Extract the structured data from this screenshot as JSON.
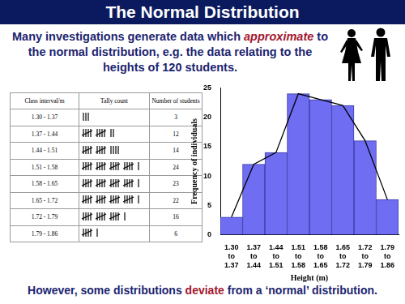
{
  "header": {
    "title": "The Normal Distribution"
  },
  "intro": [
    {
      "text": "Many investigations generate data which "
    },
    {
      "text": "approximate",
      "emphasis": true
    },
    {
      "text": " to the normal distribution, e.g. the data relating to the heights of 120 students."
    }
  ],
  "table": {
    "columns": [
      "Class interval/m",
      "Tally count",
      "Number of students"
    ],
    "rows": [
      [
        "1.30 - 1.37",
        3
      ],
      [
        "1.37 - 1.44",
        12
      ],
      [
        "1.44 - 1.51",
        14
      ],
      [
        "1.51 - 1.58",
        24
      ],
      [
        "1.58 - 1.65",
        23
      ],
      [
        "1.65 - 1.72",
        22
      ],
      [
        "1.72 - 1.79",
        16
      ],
      [
        "1.79 - 1.86",
        6
      ]
    ]
  },
  "chart_data": {
    "type": "bar",
    "categories": [
      "1.30 to 1.37",
      "1.37 to 1.44",
      "1.44 to 1.51",
      "1.51 to 1.58",
      "1.58 to 1.65",
      "1.65 to 1.72",
      "1.72 to 1.79",
      "1.79 to 1.86"
    ],
    "series": [
      {
        "type": "bar",
        "color": "#6f6df2",
        "values": [
          3,
          12,
          14,
          24,
          23,
          22,
          16,
          6
        ]
      },
      {
        "type": "line",
        "color": "#000000",
        "values": [
          3,
          12,
          14,
          24,
          23,
          22,
          16,
          6
        ]
      }
    ],
    "x_label": "Height (m)",
    "y_label": "Frequency of individuals",
    "ylim": [
      0,
      25
    ],
    "yticks": [
      0,
      5,
      10,
      15,
      20,
      25
    ],
    "grid": false
  },
  "footer": [
    {
      "text": "However, some distributions "
    },
    {
      "text": "deviate",
      "emphasis": true
    },
    {
      "text": " from a ‘normal’ distribution."
    }
  ]
}
